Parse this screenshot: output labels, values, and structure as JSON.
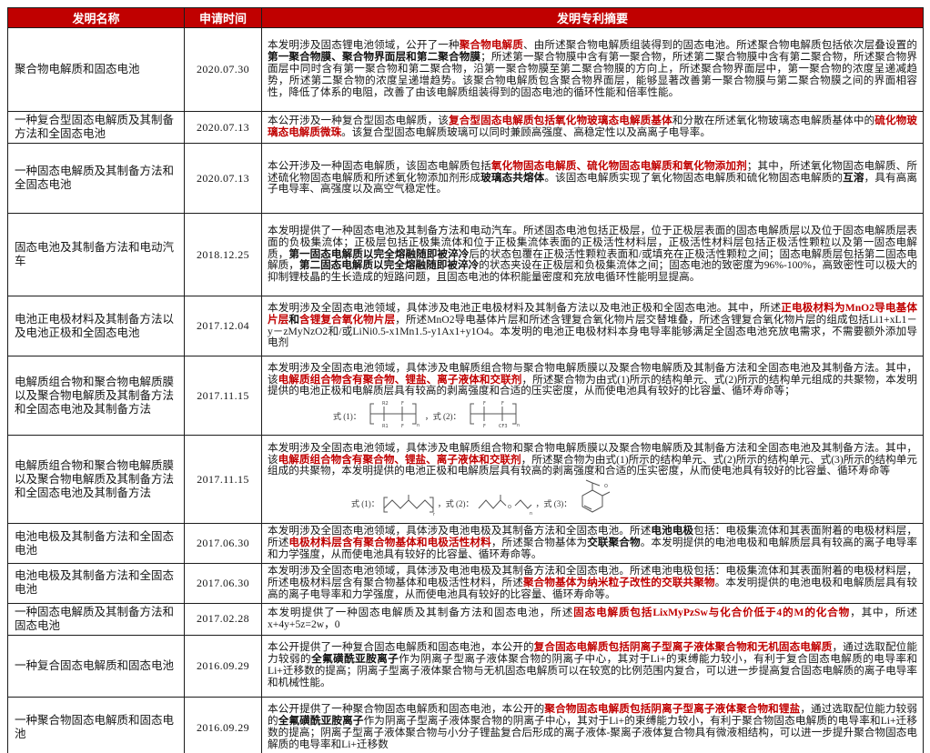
{
  "colors": {
    "accent_red": "#c00000",
    "header_text": "#ffffff",
    "body_text": "#161616"
  },
  "header": {
    "col_name": "发明名称",
    "col_date": "申请时间",
    "col_abstract": "发明专利摘要"
  },
  "rows": [
    {
      "name": "聚合物电解质和固态电池",
      "date": "2020.07.30",
      "abstract": [
        {
          "text": "本发明涉及固态锂电池领域，公开了一种",
          "style": "n"
        },
        {
          "text": "聚合物电解质",
          "style": "rb"
        },
        {
          "text": "、由所述聚合物电解质组装得到的固态电池。所述聚合物电解质包括依次层叠设置的",
          "style": "n"
        },
        {
          "text": "第一聚合物膜、聚合物界面层和第二聚合物膜",
          "style": "b"
        },
        {
          "text": "；所述第一聚合物膜中含有第一聚合物，所述第二聚合物膜中含有第二聚合物，所述聚合物界面层中同时含有第一聚合物和第二聚合物，沿第一聚合物膜至第二聚合物膜的方向上，所述聚合物界面层中，第一聚合物的浓度呈递减趋势，所述第二聚合物的浓度呈递增趋势。该聚合物电解质包含聚合物界面层，能够显著改善第一聚合物膜与第二聚合物膜之间的界面相容性，降低了体系的电阻，改善了由该电解质组装得到的固态电池的循环性能和倍率性能。",
          "style": "n"
        }
      ]
    },
    {
      "name": "一种复合型固态电解质及其制备方法和全固态电池",
      "date": "2020.07.13",
      "abstract": [
        {
          "text": "本公开涉及一种复合型固态电解质，该",
          "style": "n"
        },
        {
          "text": "复合型固态电解质包括氧化物玻璃态电解质基体",
          "style": "rb"
        },
        {
          "text": "和分散在所述氧化物玻璃态电解质基体中的",
          "style": "n"
        },
        {
          "text": "硫化物玻璃态电解质微珠",
          "style": "rb"
        },
        {
          "text": "。该复合型固态电解质玻璃可以同时兼顾高强度、高稳定性以及高离子电导率。",
          "style": "n"
        }
      ]
    },
    {
      "name": "一种固态电解质及其制备方法和全固态电池",
      "date": "2020.07.13",
      "abstract": [
        {
          "text": "本公开涉及一种固态电解质，该固态电解质包括",
          "style": "n"
        },
        {
          "text": "氧化物固态电解质、硫化物固态电解质和氧化物添加剂",
          "style": "rb"
        },
        {
          "text": "；其中，所述氧化物固态电解质、所述硫化物固态电解质和所述氧化物添加剂形成",
          "style": "n"
        },
        {
          "text": "玻璃态共熔体",
          "style": "b"
        },
        {
          "text": "。该固态电解质实现了氧化物固态电解质和硫化物固态电解质的",
          "style": "n"
        },
        {
          "text": "互溶",
          "style": "b"
        },
        {
          "text": "，具有高离子电导率、高强度以及高空气稳定性。",
          "style": "n"
        }
      ]
    },
    {
      "name": "固态电池及其制备方法和电动汽车",
      "date": "2018.12.25",
      "abstract": [
        {
          "text": "本发明提供了一种固态电池及其制备方法和电动汽车。所述固态电池包括正极层，位于正极层表面的固态电解质层以及位于固态电解质层表面的负极集流体；正极层包括正极集流体和位于正极集流体表面的正极活性材料层，正极活性材料层包括正极活性颗粒以及第一固态电解质，",
          "style": "n"
        },
        {
          "text": "第一固态电解质以完全熔融随即被淬冷",
          "style": "b"
        },
        {
          "text": "后的状态包覆在正极活性颗粒表面和/或填充在正极活性颗粒之间；固态电解质层包括第二固态电解质，",
          "style": "n"
        },
        {
          "text": "第二固态电解质以完全熔融随即被淬冷",
          "style": "b"
        },
        {
          "text": "的状态夹设在正极层和负极集流体之间；固态电池的致密度为96%-100%，高致密性可以极大的抑制锂枝晶的生长造成的短路问题，且固态电池的体积能量密度和充放电循环性能明显提高。",
          "style": "n"
        }
      ]
    },
    {
      "name": "电池正电极材料及其制备方法以及电池正极和全固态电池",
      "date": "2017.12.04",
      "abstract": [
        {
          "text": "本发明涉及全固态电池领域，具体涉及电池正电极材料及其制备方法以及电池正极和全固态电池。其中，所述",
          "style": "n"
        },
        {
          "text": "正电极材料为MnO2导电基体片层",
          "style": "rb"
        },
        {
          "text": "和",
          "style": "b"
        },
        {
          "text": "含锂复合氧化物片层",
          "style": "rb"
        },
        {
          "text": "，所述MnO2导电基体片层和所述含锂复合氧化物片层交替堆叠，所述含锂复合氧化物片层的组成包括Li1+xL1－y－zMyNzO2和/或LiNi0.5-x1Mn1.5-y1Ax1+y1O4。本发明的电池正电极材料本身电导率能够满足全固态电池充放电需求，不需要额外添加导电剂",
          "style": "n"
        }
      ]
    },
    {
      "name": "电解质组合物和聚合物电解质膜以及聚合物电解质及其制备方法和全固态电池及其制备方法",
      "date": "2017.11.15",
      "abstract": [
        {
          "text": "本发明涉及全固态电池领域，具体涉及电解质组合物与聚合物电解质膜以及聚合物电解质及其制备方法和全固态电池及其制备方法。其中，该",
          "style": "n"
        },
        {
          "text": "电解质组合物含有聚合物、锂盐、离子液体和交联剂",
          "style": "rb"
        },
        {
          "text": "，所述聚合物为由式(1)所示的结构单元、式(2)所示的结构单元组成的共聚物，本发明提供的电池正极和电解质层具有较高的剥离强度和合适的压实密度，从而使电池具有较好的比容量、循环寿命等；",
          "style": "n"
        }
      ],
      "formulas": [
        {
          "label": "式 (1)：",
          "shape": "unit-r1r2-ff"
        },
        {
          "label": "，式 (2)：",
          "shape": "unit-ff-fcf3"
        }
      ]
    },
    {
      "name": "电解质组合物和聚合物电解质膜以及聚合物电解质及其制备方法和全固态电池及其制备方法",
      "date": "2017.11.15",
      "abstract": [
        {
          "text": "本发明涉及全固态电池领域，具体涉及电解质组合物和聚合物电解质膜以及聚合物电解质及其制备方法和全固态电池及其制备方法。其中，该",
          "style": "n"
        },
        {
          "text": "电解质组合物含有聚合物、锂盐、离子液体和交联剂",
          "style": "rb"
        },
        {
          "text": "，所述聚合物为由式(1)所示的结构单元、式(2)所示的结构单元、式(3)所示的结构单元组成的共聚物，本发明提供的电池正极和电解质层具有较高的剥离强度和合适的压实密度，从而使电池具有较好的比容量、循环寿命等",
          "style": "n"
        }
      ],
      "formulas": [
        {
          "label": "式 (1)：",
          "shape": "zigzag-chain"
        },
        {
          "label": "，式 (2)：",
          "shape": "zigzag-ether"
        },
        {
          "label": "，式 (3)：",
          "shape": "ring-unit"
        }
      ]
    },
    {
      "name": "电池电极及其制备方法和全固态电池",
      "date": "2017.06.30",
      "abstract": [
        {
          "text": "本发明涉及全固态电池领域，具体涉及电池电极及其制备方法和全固态电池。所述",
          "style": "n"
        },
        {
          "text": "电池电极",
          "style": "b"
        },
        {
          "text": "包括：电极集流体和其表面附着的电极材料层，所述",
          "style": "n"
        },
        {
          "text": "电极材料层含有聚合物基体和电极活性材料",
          "style": "rb"
        },
        {
          "text": "，所述聚合物基体为",
          "style": "n"
        },
        {
          "text": "交联聚合物",
          "style": "b"
        },
        {
          "text": "。本发明提供的电池电极和电解质层具有较高的离子电导率和力学强度，从而使电池具有较好的比容量、循环寿命等。",
          "style": "n"
        }
      ]
    },
    {
      "name": "电池电极及其制备方法和全固态电池",
      "date": "2017.06.30",
      "abstract": [
        {
          "text": "本发明涉及全固态电池领域，具体涉及电池电极及其制备方法和全固态电池。所述电池电极包括：电极集流体和其表面附着的电极材料层，所述电极材料层含有聚合物基体和电极活性材料，所述",
          "style": "n"
        },
        {
          "text": "聚合物基体为纳米粒子改性的交联共聚物",
          "style": "rb"
        },
        {
          "text": "。本发明提供的电池电极和电解质层具有较高的离子电导率和力学强度，从而使电池具有较好的比容量、循环寿命等。",
          "style": "n"
        }
      ]
    },
    {
      "name": "一种固态电解质及其制备方法和固态电池",
      "date": "2017.02.28",
      "abstract": [
        {
          "text": "本发明提供了一种固态电解质及其制备方法和固态电池，所述",
          "style": "n"
        },
        {
          "text": "固态电解质包括LixMyPzSw与化合价低于4的M的化合物",
          "style": "rb"
        },
        {
          "text": "，其中，所述x+4y+5z=2w，0",
          "style": "n"
        }
      ]
    },
    {
      "name": "一种复合固态电解质和固态电池",
      "date": "2016.09.29",
      "abstract": [
        {
          "text": "本公开提供了一种复合固态电解质和固态电池，本公开的",
          "style": "n"
        },
        {
          "text": "复合固态电解质包括阴离子型离子液体聚合物和无机固态电解质",
          "style": "rb"
        },
        {
          "text": "，通过选取配位能力较弱的",
          "style": "n"
        },
        {
          "text": "全氟磺酰亚胺离子",
          "style": "b"
        },
        {
          "text": "作为阴离子型离子液体聚合物的阴离子中心，其对于Li+的束缚能力较小，有利于复合固态电解质的电导率和Li+迁移数的提高；阴离子型离子液体聚合物与无机固态电解质可以在较宽的比例范围内复合，可以进一步提高复合固态电解质的离子电导率和机械性能。",
          "style": "n"
        }
      ]
    },
    {
      "name": "一种聚合物固态电解质和固态电池",
      "date": "2016.09.29",
      "abstract": [
        {
          "text": "本公开提供了一种聚合物固态电解质和固态电池，本公开的",
          "style": "n"
        },
        {
          "text": "聚合物固态电解质包括阴离子型离子液体聚合物和锂盐",
          "style": "rb"
        },
        {
          "text": "，通过选取配位能力较弱的",
          "style": "n"
        },
        {
          "text": "全氟磺酰亚胺离子",
          "style": "b"
        },
        {
          "text": "作为阴离子型离子液体聚合物的阴离子中心，其对于Li+的束缚能力较小，有利于聚合物固态电解质的电导率和Li+迁移数的提高；阴离子型离子液体聚合物与小分子锂盐复合后形成的离子液体-聚离子液体复合物具有微液相结构，可以进一步提升聚合物固态电解质的电导率和Li+迁移数",
          "style": "n"
        }
      ]
    }
  ]
}
